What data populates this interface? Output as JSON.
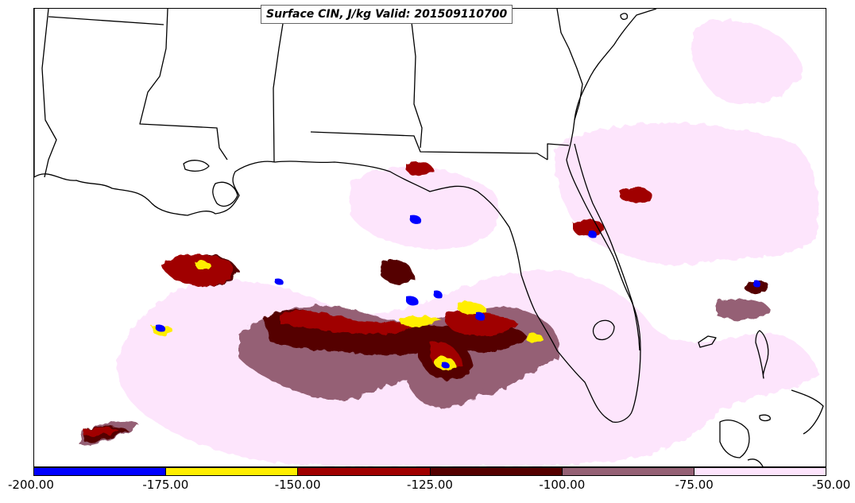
{
  "title": "Surface CIN, J/kg Valid: 201509110700",
  "legend": {
    "ticks": [
      "-200.00",
      "-175.00",
      "-150.00",
      "-125.00",
      "-100.00",
      "-75.00",
      "-50.00"
    ],
    "bins": [
      {
        "range": [
          -200,
          -175
        ],
        "color": "#0000ff"
      },
      {
        "range": [
          -175,
          -150
        ],
        "color": "#ffee00"
      },
      {
        "range": [
          -150,
          -125
        ],
        "color": "#a00000"
      },
      {
        "range": [
          -125,
          -100
        ],
        "color": "#550000"
      },
      {
        "range": [
          -100,
          -75
        ],
        "color": "#956175"
      },
      {
        "range": [
          -75,
          -50
        ],
        "color": "#fde4fc"
      }
    ]
  },
  "map": {
    "field": "Surface CIN",
    "units": "J/kg",
    "valid": "201509110700",
    "boundary_color": "#000000"
  }
}
